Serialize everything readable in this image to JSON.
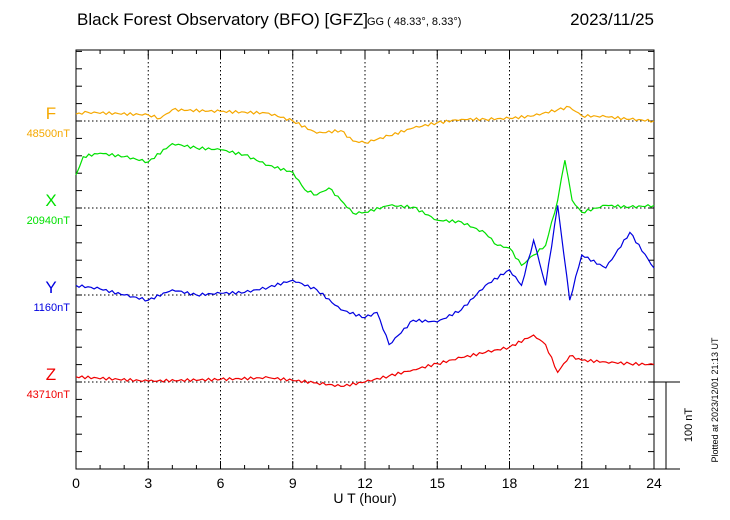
{
  "header": {
    "title": "Black Forest Observatory (BFO)  [GFZ]",
    "coords": "GG ( 48.33°,   8.33°)",
    "date": "2023/11/25"
  },
  "footer_note": "Plotted at 2023/12/01 21:13 UT",
  "chart_data": {
    "type": "line",
    "xlabel": "U T (hour)",
    "xlim": [
      0,
      24
    ],
    "xticks": [
      "0",
      "3",
      "6",
      "9",
      "12",
      "15",
      "18",
      "21",
      "24"
    ],
    "grid": true,
    "scale_bar_label": "100 nT",
    "series": [
      {
        "name": "F",
        "baseline_label": "48500nT",
        "baseline": 48500,
        "color": "#f5a800",
        "x": [
          0,
          0.5,
          3,
          3.5,
          4,
          6,
          8,
          9,
          10,
          11,
          11.5,
          12,
          13,
          14,
          15,
          16,
          17,
          18,
          19,
          20,
          20.5,
          21,
          22,
          23,
          24
        ],
        "values": [
          48508,
          48510,
          48507,
          48503,
          48513,
          48511,
          48509,
          48500,
          48486,
          48489,
          48477,
          48475,
          48483,
          48492,
          48498,
          48502,
          48502,
          48503,
          48506,
          48513,
          48516,
          48506,
          48505,
          48502,
          48500
        ]
      },
      {
        "name": "X",
        "baseline_label": "20940nT",
        "baseline": 20940,
        "color": "#00e000",
        "x": [
          0,
          0.3,
          1,
          2,
          3,
          4,
          5,
          6,
          7,
          8,
          9,
          9.5,
          10,
          10.5,
          11,
          11.5,
          12,
          13,
          14,
          15,
          16,
          17,
          17.5,
          18,
          18.5,
          19,
          19.5,
          20,
          20.3,
          20.6,
          21,
          22,
          23,
          24
        ],
        "values": [
          20978,
          20999,
          21003,
          20999,
          20993,
          21014,
          21009,
          21007,
          21001,
          20989,
          20981,
          20961,
          20955,
          20963,
          20949,
          20934,
          20935,
          20943,
          20941,
          20926,
          20924,
          20911,
          20897,
          20894,
          20874,
          20886,
          20897,
          20949,
          20995,
          20949,
          20935,
          20943,
          20941,
          20943
        ]
      },
      {
        "name": "Y",
        "baseline_label": "1160nT",
        "baseline": 1160,
        "color": "#0000e0",
        "x": [
          0,
          1,
          2,
          3,
          4,
          5,
          6,
          7,
          8,
          9,
          10,
          11,
          12,
          12.5,
          13,
          14,
          15,
          16,
          17,
          18,
          18.5,
          19,
          19.5,
          20,
          20.5,
          21,
          22,
          23,
          24
        ],
        "values": [
          1171,
          1167,
          1160,
          1154,
          1166,
          1160,
          1162,
          1163,
          1169,
          1177,
          1166,
          1143,
          1134,
          1140,
          1103,
          1131,
          1129,
          1143,
          1171,
          1189,
          1171,
          1223,
          1171,
          1263,
          1154,
          1206,
          1191,
          1232,
          1191
        ]
      },
      {
        "name": "Z",
        "baseline_label": "43710nT",
        "baseline": 43710,
        "color": "#f00000",
        "x": [
          0,
          3,
          6,
          8,
          10,
          11,
          12,
          13,
          14,
          15,
          16,
          17,
          18,
          19,
          19.5,
          20,
          20.5,
          21,
          22,
          23,
          24
        ],
        "values": [
          43716,
          43711,
          43713,
          43715,
          43709,
          43705,
          43710,
          43717,
          43724,
          43731,
          43738,
          43744,
          43750,
          43764,
          43753,
          43721,
          43740,
          43735,
          43733,
          43731,
          43730
        ]
      }
    ]
  }
}
